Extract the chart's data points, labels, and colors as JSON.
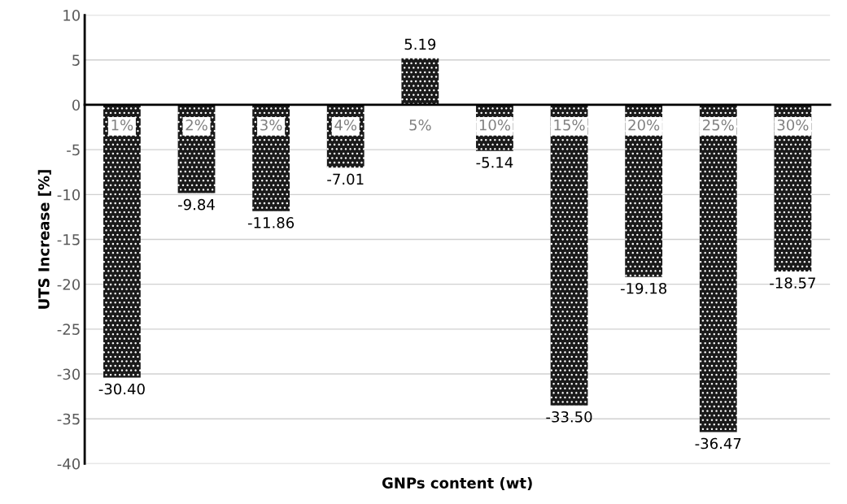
{
  "chart_data": {
    "type": "bar",
    "xlabel": "GNPs content (wt)",
    "ylabel": "UTS Increase [%]",
    "categories": [
      "1%",
      "2%",
      "3%",
      "4%",
      "5%",
      "10%",
      "15%",
      "20%",
      "25%",
      "30%"
    ],
    "values": [
      -30.4,
      -9.84,
      -11.86,
      -7.01,
      5.19,
      -5.14,
      -33.5,
      -19.18,
      -36.47,
      -18.57
    ],
    "value_labels": [
      "-30.40",
      "-9.84",
      "-11.86",
      "-7.01",
      "5.19",
      "-5.14",
      "-33.50",
      "-19.18",
      "-36.47",
      "-18.57"
    ],
    "color": "#1a1a1a",
    "ylim": [
      -40,
      10
    ],
    "yticks": [
      -40,
      -35,
      -30,
      -25,
      -20,
      -15,
      -10,
      -5,
      0,
      5,
      10
    ],
    "grid": "y"
  }
}
